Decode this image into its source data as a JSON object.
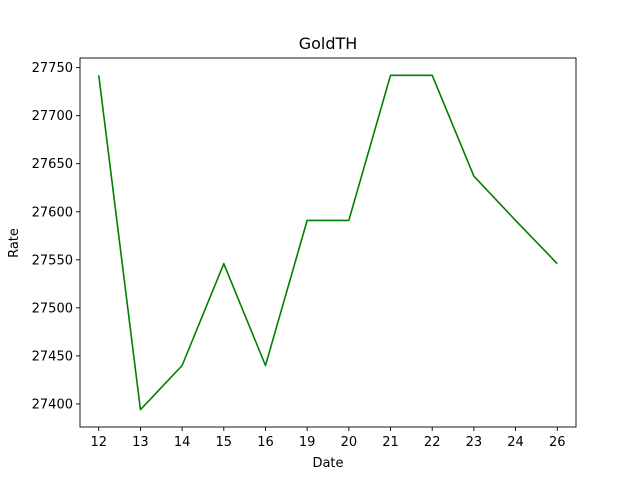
{
  "chart_data": {
    "type": "line",
    "title": "GoldTH",
    "xlabel": "Date",
    "ylabel": "Rate",
    "categories": [
      "12",
      "13",
      "14",
      "15",
      "16",
      "19",
      "20",
      "21",
      "22",
      "23",
      "24",
      "26"
    ],
    "series": [
      {
        "values": [
          27742,
          27394,
          27440,
          27546,
          27440,
          27591,
          27591,
          27742,
          27742,
          27637,
          27591,
          27546
        ],
        "color": "#008000"
      }
    ],
    "y_ticks": [
      27400,
      27450,
      27500,
      27550,
      27600,
      27650,
      27700,
      27750
    ],
    "ylim": [
      27376,
      27760
    ],
    "grid": false,
    "legend": "none"
  }
}
